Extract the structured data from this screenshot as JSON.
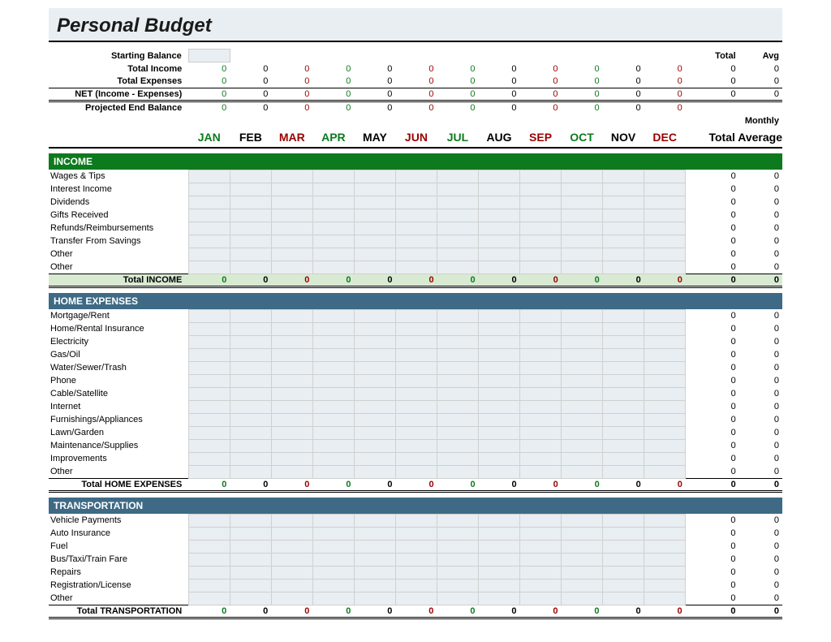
{
  "title": "Personal Budget",
  "colors": {
    "title_bg": "#e8eef2",
    "income_header_bg": "#0d7a1e",
    "expense_header_bg": "#3e6a85",
    "data_cell_bg": "#e8eef2",
    "income_total_bg": "#d9ead3",
    "month_green": "#0d7a1e",
    "month_red": "#990000",
    "month_black": "#000000"
  },
  "months": [
    {
      "label": "JAN",
      "color": "green"
    },
    {
      "label": "FEB",
      "color": "black"
    },
    {
      "label": "MAR",
      "color": "red"
    },
    {
      "label": "APR",
      "color": "green"
    },
    {
      "label": "MAY",
      "color": "black"
    },
    {
      "label": "JUN",
      "color": "red"
    },
    {
      "label": "JUL",
      "color": "green"
    },
    {
      "label": "AUG",
      "color": "black"
    },
    {
      "label": "SEP",
      "color": "red"
    },
    {
      "label": "OCT",
      "color": "green"
    },
    {
      "label": "NOV",
      "color": "black"
    },
    {
      "label": "DEC",
      "color": "red"
    }
  ],
  "top_labels": {
    "starting_balance": "Starting Balance",
    "total_income": "Total Income",
    "total_expenses": "Total Expenses",
    "net": "NET (Income - Expenses)",
    "projected_end": "Projected End Balance",
    "total": "Total",
    "avg": "Avg",
    "monthly": "Monthly",
    "total_average": "Total Average"
  },
  "summary_rows": {
    "total_income": {
      "vals": [
        0,
        0,
        0,
        0,
        0,
        0,
        0,
        0,
        0,
        0,
        0,
        0
      ],
      "total": 0,
      "avg": 0
    },
    "total_expenses": {
      "vals": [
        0,
        0,
        0,
        0,
        0,
        0,
        0,
        0,
        0,
        0,
        0,
        0
      ],
      "total": 0,
      "avg": 0
    },
    "net": {
      "vals": [
        0,
        0,
        0,
        0,
        0,
        0,
        0,
        0,
        0,
        0,
        0,
        0
      ],
      "total": 0,
      "avg": 0
    },
    "projected_end": {
      "vals": [
        0,
        0,
        0,
        0,
        0,
        0,
        0,
        0,
        0,
        0,
        0,
        0
      ],
      "total": "",
      "avg": ""
    }
  },
  "sections": [
    {
      "id": "income",
      "title": "INCOME",
      "header_class": "section-income",
      "total_bg_class": "total-income-bg",
      "total_label": "Total INCOME",
      "items": [
        "Wages & Tips",
        "Interest Income",
        "Dividends",
        "Gifts Received",
        "Refunds/Reimbursements",
        "Transfer From Savings",
        "Other",
        "Other"
      ],
      "item_totals": [
        0,
        0,
        0,
        0,
        0,
        0,
        0,
        0
      ],
      "item_avgs": [
        0,
        0,
        0,
        0,
        0,
        0,
        0,
        0
      ],
      "totals": {
        "vals": [
          0,
          0,
          0,
          0,
          0,
          0,
          0,
          0,
          0,
          0,
          0,
          0
        ],
        "total": 0,
        "avg": 0
      }
    },
    {
      "id": "home",
      "title": "HOME EXPENSES",
      "header_class": "section-home",
      "total_bg_class": "",
      "total_label": "Total HOME EXPENSES",
      "items": [
        "Mortgage/Rent",
        "Home/Rental Insurance",
        "Electricity",
        "Gas/Oil",
        "Water/Sewer/Trash",
        "Phone",
        "Cable/Satellite",
        "Internet",
        "Furnishings/Appliances",
        "Lawn/Garden",
        "Maintenance/Supplies",
        "Improvements",
        "Other"
      ],
      "item_totals": [
        0,
        0,
        0,
        0,
        0,
        0,
        0,
        0,
        0,
        0,
        0,
        0,
        0
      ],
      "item_avgs": [
        0,
        0,
        0,
        0,
        0,
        0,
        0,
        0,
        0,
        0,
        0,
        0,
        0
      ],
      "totals": {
        "vals": [
          0,
          0,
          0,
          0,
          0,
          0,
          0,
          0,
          0,
          0,
          0,
          0
        ],
        "total": 0,
        "avg": 0
      }
    },
    {
      "id": "transportation",
      "title": "TRANSPORTATION",
      "header_class": "section-trans",
      "total_bg_class": "",
      "total_label": "Total TRANSPORTATION",
      "items": [
        "Vehicle Payments",
        "Auto Insurance",
        "Fuel",
        "Bus/Taxi/Train Fare",
        "Repairs",
        "Registration/License",
        "Other"
      ],
      "item_totals": [
        0,
        0,
        0,
        0,
        0,
        0,
        0
      ],
      "item_avgs": [
        0,
        0,
        0,
        0,
        0,
        0,
        0
      ],
      "totals": {
        "vals": [
          0,
          0,
          0,
          0,
          0,
          0,
          0,
          0,
          0,
          0,
          0,
          0
        ],
        "total": 0,
        "avg": 0
      }
    }
  ]
}
